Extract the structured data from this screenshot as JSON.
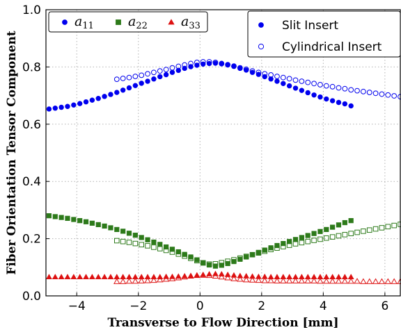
{
  "chart_data": {
    "type": "scatter",
    "xlabel": "Transverse to Flow Direction [mm]",
    "ylabel": "Fiber Orientation Tensor Component",
    "xlim": [
      -5,
      6.5
    ],
    "ylim": [
      0,
      1.0
    ],
    "xticks": [
      -4,
      -2,
      0,
      2,
      4,
      6
    ],
    "yticks": [
      0.0,
      0.2,
      0.4,
      0.6,
      0.8,
      1.0
    ],
    "xtick_labels": [
      "−4",
      "−2",
      "0",
      "2",
      "4",
      "6"
    ],
    "ytick_labels": [
      "0.0",
      "0.2",
      "0.4",
      "0.6",
      "0.8",
      "1.0"
    ],
    "grid": true,
    "colors": {
      "a11": "#0000ee",
      "a22": "#2d7a1a",
      "a33": "#dd1111"
    },
    "legend_components": {
      "placement": "top-left",
      "items": [
        {
          "key": "a11",
          "base": "a",
          "sub": "11",
          "marker": "circle"
        },
        {
          "key": "a22",
          "base": "a",
          "sub": "22",
          "marker": "square"
        },
        {
          "key": "a33",
          "base": "a",
          "sub": "33",
          "marker": "triangle"
        }
      ]
    },
    "legend_inserts": {
      "placement": "top-right",
      "items": [
        {
          "label": "Slit Insert",
          "style": "filled"
        },
        {
          "label": "Cylindrical Insert",
          "style": "hollow"
        }
      ]
    },
    "series": [
      {
        "component": "a11",
        "insert": "Slit Insert",
        "marker": "circle",
        "filled": true,
        "x": [
          -4.9,
          -4.7,
          -4.5,
          -4.3,
          -4.1,
          -3.9,
          -3.7,
          -3.5,
          -3.3,
          -3.1,
          -2.9,
          -2.7,
          -2.5,
          -2.3,
          -2.1,
          -1.9,
          -1.7,
          -1.5,
          -1.3,
          -1.1,
          -0.9,
          -0.7,
          -0.5,
          -0.3,
          -0.1,
          0.1,
          0.3,
          0.5,
          0.7,
          0.9,
          1.1,
          1.3,
          1.5,
          1.7,
          1.9,
          2.1,
          2.3,
          2.5,
          2.7,
          2.9,
          3.1,
          3.3,
          3.5,
          3.7,
          3.9,
          4.1,
          4.3,
          4.5,
          4.7,
          4.9
        ],
        "y": [
          0.653,
          0.656,
          0.659,
          0.662,
          0.667,
          0.672,
          0.678,
          0.684,
          0.69,
          0.697,
          0.704,
          0.711,
          0.719,
          0.727,
          0.735,
          0.743,
          0.75,
          0.758,
          0.766,
          0.773,
          0.781,
          0.788,
          0.795,
          0.801,
          0.806,
          0.81,
          0.812,
          0.813,
          0.811,
          0.807,
          0.802,
          0.795,
          0.789,
          0.781,
          0.774,
          0.766,
          0.758,
          0.75,
          0.742,
          0.734,
          0.726,
          0.718,
          0.71,
          0.702,
          0.695,
          0.688,
          0.682,
          0.676,
          0.671,
          0.664
        ]
      },
      {
        "component": "a11",
        "insert": "Cylindrical Insert",
        "marker": "circle",
        "filled": false,
        "x": [
          -2.7,
          -2.5,
          -2.3,
          -2.1,
          -1.9,
          -1.7,
          -1.5,
          -1.3,
          -1.1,
          -0.9,
          -0.7,
          -0.5,
          -0.3,
          -0.1,
          0.1,
          0.3,
          0.5,
          0.7,
          0.9,
          1.1,
          1.3,
          1.5,
          1.7,
          1.9,
          2.1,
          2.3,
          2.5,
          2.7,
          2.9,
          3.1,
          3.3,
          3.5,
          3.7,
          3.9,
          4.1,
          4.3,
          4.5,
          4.7,
          4.9,
          5.1,
          5.3,
          5.5,
          5.7,
          5.9,
          6.1,
          6.3,
          6.5
        ],
        "y": [
          0.757,
          0.76,
          0.763,
          0.767,
          0.771,
          0.776,
          0.781,
          0.786,
          0.791,
          0.797,
          0.802,
          0.807,
          0.812,
          0.816,
          0.818,
          0.818,
          0.816,
          0.812,
          0.808,
          0.803,
          0.797,
          0.792,
          0.786,
          0.781,
          0.776,
          0.772,
          0.767,
          0.763,
          0.759,
          0.754,
          0.75,
          0.746,
          0.742,
          0.738,
          0.734,
          0.731,
          0.727,
          0.724,
          0.72,
          0.717,
          0.714,
          0.711,
          0.708,
          0.705,
          0.702,
          0.699,
          0.696
        ]
      },
      {
        "component": "a22",
        "insert": "Slit Insert",
        "marker": "square",
        "filled": true,
        "x": [
          -4.9,
          -4.7,
          -4.5,
          -4.3,
          -4.1,
          -3.9,
          -3.7,
          -3.5,
          -3.3,
          -3.1,
          -2.9,
          -2.7,
          -2.5,
          -2.3,
          -2.1,
          -1.9,
          -1.7,
          -1.5,
          -1.3,
          -1.1,
          -0.9,
          -0.7,
          -0.5,
          -0.3,
          -0.1,
          0.1,
          0.3,
          0.5,
          0.7,
          0.9,
          1.1,
          1.3,
          1.5,
          1.7,
          1.9,
          2.1,
          2.3,
          2.5,
          2.7,
          2.9,
          3.1,
          3.3,
          3.5,
          3.7,
          3.9,
          4.1,
          4.3,
          4.5,
          4.7,
          4.9
        ],
        "y": [
          0.28,
          0.277,
          0.274,
          0.271,
          0.267,
          0.263,
          0.259,
          0.254,
          0.249,
          0.244,
          0.238,
          0.232,
          0.226,
          0.219,
          0.212,
          0.204,
          0.196,
          0.188,
          0.18,
          0.171,
          0.163,
          0.154,
          0.145,
          0.136,
          0.126,
          0.116,
          0.108,
          0.104,
          0.107,
          0.113,
          0.12,
          0.128,
          0.136,
          0.144,
          0.152,
          0.16,
          0.168,
          0.176,
          0.183,
          0.19,
          0.197,
          0.204,
          0.211,
          0.218,
          0.225,
          0.232,
          0.24,
          0.248,
          0.256,
          0.263
        ]
      },
      {
        "component": "a22",
        "insert": "Cylindrical Insert",
        "marker": "square",
        "filled": false,
        "x": [
          -2.7,
          -2.5,
          -2.3,
          -2.1,
          -1.9,
          -1.7,
          -1.5,
          -1.3,
          -1.1,
          -0.9,
          -0.7,
          -0.5,
          -0.3,
          -0.1,
          0.1,
          0.3,
          0.5,
          0.7,
          0.9,
          1.1,
          1.3,
          1.5,
          1.7,
          1.9,
          2.1,
          2.3,
          2.5,
          2.7,
          2.9,
          3.1,
          3.3,
          3.5,
          3.7,
          3.9,
          4.1,
          4.3,
          4.5,
          4.7,
          4.9,
          5.1,
          5.3,
          5.5,
          5.7,
          5.9,
          6.1,
          6.3,
          6.5
        ],
        "y": [
          0.193,
          0.19,
          0.187,
          0.183,
          0.179,
          0.175,
          0.17,
          0.165,
          0.159,
          0.153,
          0.146,
          0.139,
          0.131,
          0.123,
          0.115,
          0.111,
          0.112,
          0.116,
          0.121,
          0.126,
          0.132,
          0.138,
          0.144,
          0.15,
          0.156,
          0.162,
          0.167,
          0.172,
          0.177,
          0.182,
          0.186,
          0.19,
          0.194,
          0.198,
          0.202,
          0.206,
          0.21,
          0.214,
          0.218,
          0.222,
          0.226,
          0.23,
          0.234,
          0.238,
          0.242,
          0.246,
          0.25
        ]
      },
      {
        "component": "a33",
        "insert": "Slit Insert",
        "marker": "triangle",
        "filled": true,
        "x": [
          -4.9,
          -4.7,
          -4.5,
          -4.3,
          -4.1,
          -3.9,
          -3.7,
          -3.5,
          -3.3,
          -3.1,
          -2.9,
          -2.7,
          -2.5,
          -2.3,
          -2.1,
          -1.9,
          -1.7,
          -1.5,
          -1.3,
          -1.1,
          -0.9,
          -0.7,
          -0.5,
          -0.3,
          -0.1,
          0.1,
          0.3,
          0.5,
          0.7,
          0.9,
          1.1,
          1.3,
          1.5,
          1.7,
          1.9,
          2.1,
          2.3,
          2.5,
          2.7,
          2.9,
          3.1,
          3.3,
          3.5,
          3.7,
          3.9,
          4.1,
          4.3,
          4.5,
          4.7,
          4.9
        ],
        "y": [
          0.066,
          0.066,
          0.066,
          0.066,
          0.066,
          0.066,
          0.066,
          0.066,
          0.066,
          0.066,
          0.066,
          0.066,
          0.066,
          0.066,
          0.066,
          0.066,
          0.066,
          0.066,
          0.066,
          0.067,
          0.067,
          0.068,
          0.069,
          0.07,
          0.072,
          0.074,
          0.076,
          0.077,
          0.076,
          0.074,
          0.072,
          0.07,
          0.069,
          0.068,
          0.067,
          0.067,
          0.066,
          0.066,
          0.066,
          0.066,
          0.066,
          0.066,
          0.066,
          0.066,
          0.066,
          0.066,
          0.066,
          0.066,
          0.066,
          0.066
        ]
      },
      {
        "component": "a33",
        "insert": "Cylindrical Insert",
        "marker": "triangle",
        "filled": false,
        "x": [
          -2.7,
          -2.5,
          -2.3,
          -2.1,
          -1.9,
          -1.7,
          -1.5,
          -1.3,
          -1.1,
          -0.9,
          -0.7,
          -0.5,
          -0.3,
          -0.1,
          0.1,
          0.3,
          0.5,
          0.7,
          0.9,
          1.1,
          1.3,
          1.5,
          1.7,
          1.9,
          2.1,
          2.3,
          2.5,
          2.7,
          2.9,
          3.1,
          3.3,
          3.5,
          3.7,
          3.9,
          4.1,
          4.3,
          4.5,
          4.7,
          4.9,
          5.1,
          5.3,
          5.5,
          5.7,
          5.9,
          6.1,
          6.3,
          6.5
        ],
        "y": [
          0.05,
          0.05,
          0.051,
          0.051,
          0.052,
          0.053,
          0.054,
          0.056,
          0.058,
          0.06,
          0.063,
          0.066,
          0.069,
          0.071,
          0.072,
          0.071,
          0.069,
          0.066,
          0.063,
          0.06,
          0.058,
          0.056,
          0.055,
          0.054,
          0.053,
          0.053,
          0.052,
          0.052,
          0.052,
          0.052,
          0.052,
          0.052,
          0.052,
          0.051,
          0.051,
          0.051,
          0.051,
          0.051,
          0.051,
          0.051,
          0.05,
          0.05,
          0.05,
          0.05,
          0.05,
          0.05,
          0.05
        ]
      }
    ]
  }
}
